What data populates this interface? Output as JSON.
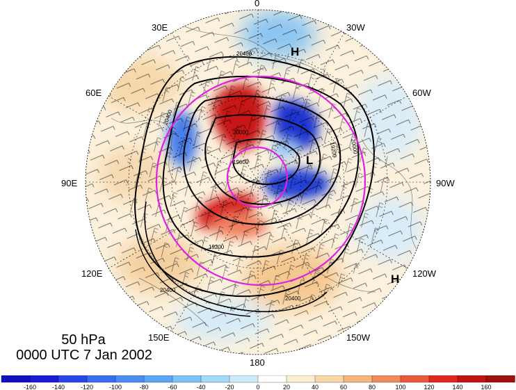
{
  "title": {
    "level": "50 hPa",
    "time": "0000 UTC 7 Jan 2002"
  },
  "map": {
    "lon_labels": [
      {
        "text": "0",
        "name": "lon-label-0"
      },
      {
        "text": "30W",
        "name": "lon-label-30w"
      },
      {
        "text": "60W",
        "name": "lon-label-60w"
      },
      {
        "text": "90W",
        "name": "lon-label-90w"
      },
      {
        "text": "120W",
        "name": "lon-label-120w"
      },
      {
        "text": "150W",
        "name": "lon-label-150w"
      },
      {
        "text": "180",
        "name": "lon-label-180"
      },
      {
        "text": "150E",
        "name": "lon-label-150e"
      },
      {
        "text": "120E",
        "name": "lon-label-120e"
      },
      {
        "text": "90E",
        "name": "lon-label-90e"
      },
      {
        "text": "60E",
        "name": "lon-label-60e"
      },
      {
        "text": "30E",
        "name": "lon-label-30e"
      }
    ],
    "contour_labels": [
      "20400",
      "20400",
      "20400",
      "20400",
      "19600",
      "19200",
      "20000",
      "19200",
      "20000"
    ],
    "pressure_centers": [
      {
        "text": "H",
        "name": "high-pressure-north"
      },
      {
        "text": "L",
        "name": "low-pressure-center"
      },
      {
        "text": "H",
        "name": "high-pressure-southeast"
      }
    ]
  },
  "colorbar": {
    "ticks": [
      "-160",
      "-140",
      "-120",
      "-100",
      "-80",
      "-60",
      "-40",
      "-20",
      "0",
      "20",
      "40",
      "60",
      "80",
      "100",
      "120",
      "140",
      "160"
    ],
    "colors": [
      "#1a1ad8",
      "#2a46e6",
      "#3a6ef0",
      "#4a8ef4",
      "#5aa8f6",
      "#7ec2f8",
      "#a6d8fa",
      "#cdebfc",
      "#ffffff",
      "#fbeed2",
      "#f8d8a6",
      "#f4b67c",
      "#f08c5a",
      "#e85a3a",
      "#dc2a22",
      "#c01414",
      "#a01010"
    ]
  }
}
